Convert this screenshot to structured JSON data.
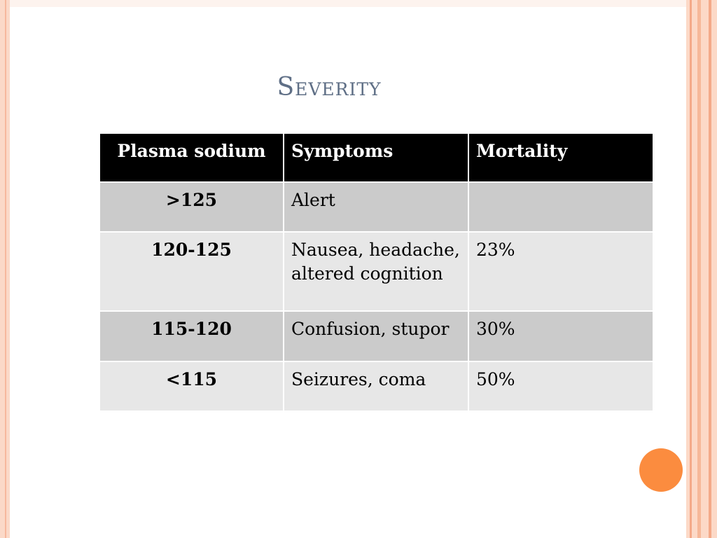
{
  "slide": {
    "title": "Severity",
    "accent_color": "#fb8c3f",
    "title_color": "#5f6f86"
  },
  "table": {
    "headers": [
      "Plasma sodium",
      "Symptoms",
      "Mortality"
    ],
    "rows": [
      {
        "sodium": ">125",
        "symptoms": "Alert",
        "mortality": ""
      },
      {
        "sodium": "120-125",
        "symptoms": "Nausea, headache, altered cognition",
        "mortality": "23%"
      },
      {
        "sodium": "115-120",
        "symptoms": "Confusion, stupor",
        "mortality": "30%"
      },
      {
        "sodium": "<115",
        "symptoms": "Seizures, coma",
        "mortality": "50%"
      }
    ]
  }
}
